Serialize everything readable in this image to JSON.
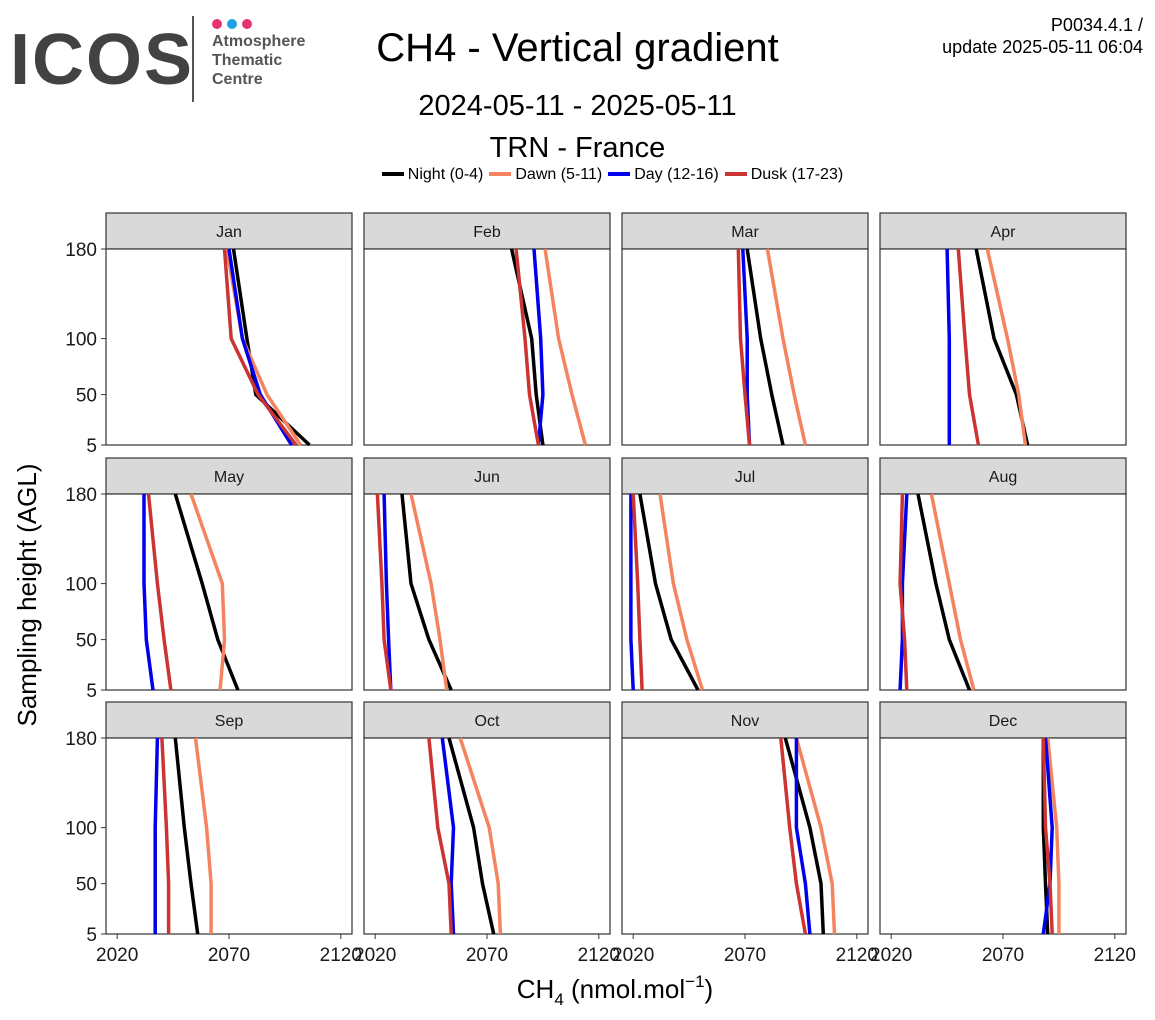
{
  "logo": {
    "word": "ICOS",
    "line1": "Atmosphere",
    "line2": "Thematic",
    "line3": "Centre",
    "dot_colors": [
      "#e8326e",
      "#1fa3e6",
      "#e8326e"
    ]
  },
  "header": {
    "version": "P0034.4.1 /",
    "update": "update  2025-05-11 06:04"
  },
  "chart_data": {
    "type": "line",
    "title": "CH4 - Vertical gradient",
    "subtitle": "2024-05-11 - 2025-05-11",
    "station": "TRN - France",
    "xlabel_main": "CH",
    "xlabel_sub": "4",
    "xlabel_unit": " (nmol.mol",
    "xlabel_sup": "−1",
    "xlabel_close": ")",
    "ylabel": "Sampling height (AGL)",
    "xlim": [
      2015,
      2125
    ],
    "xticks": [
      2020,
      2070,
      2120
    ],
    "yticks": [
      5,
      50,
      100,
      180
    ],
    "ylim": [
      5,
      180
    ],
    "heights": [
      5,
      50,
      100,
      180
    ],
    "grid": false,
    "legend_position": "top",
    "series": [
      {
        "name": "Night (0-4)",
        "color": "#000000"
      },
      {
        "name": "Dawn (5-11)",
        "color": "#f4845f"
      },
      {
        "name": "Day (12-16)",
        "color": "#0000ee"
      },
      {
        "name": "Dusk (17-23)",
        "color": "#cc3333"
      }
    ],
    "panels": [
      {
        "month": "Jan",
        "values": {
          "Night (0-4)": [
            2106,
            2082,
            2078,
            2072
          ],
          "Dawn (5-11)": [
            2102,
            2087,
            2076,
            2069
          ],
          "Day (12-16)": [
            2098,
            2084,
            2076,
            2070
          ],
          "Dusk (17-23)": [
            2100,
            2083,
            2071,
            2068
          ]
        }
      },
      {
        "month": "Feb",
        "values": {
          "Night (0-4)": [
            2095,
            2092,
            2090,
            2081
          ],
          "Dawn (5-11)": [
            2114,
            2108,
            2102,
            2096
          ],
          "Day (12-16)": [
            2093,
            2095,
            2094,
            2091
          ],
          "Dusk (17-23)": [
            2093,
            2089,
            2087,
            2083
          ]
        }
      },
      {
        "month": "Mar",
        "values": {
          "Night (0-4)": [
            2087,
            2082,
            2077,
            2071
          ],
          "Dawn (5-11)": [
            2097,
            2092,
            2087,
            2080
          ],
          "Day (12-16)": [
            2072,
            2071,
            2071,
            2069
          ],
          "Dusk (17-23)": [
            2072,
            2070,
            2068,
            2067
          ]
        }
      },
      {
        "month": "Apr",
        "values": {
          "Night (0-4)": [
            2081,
            2076,
            2066,
            2058
          ],
          "Dawn (5-11)": [
            2080,
            2077,
            2072,
            2063
          ],
          "Day (12-16)": [
            2046,
            2046,
            2046,
            2045
          ],
          "Dusk (17-23)": [
            2059,
            2055,
            2053,
            2050
          ]
        }
      },
      {
        "month": "May",
        "values": {
          "Night (0-4)": [
            2074,
            2065,
            2058,
            2046
          ],
          "Dawn (5-11)": [
            2066,
            2068,
            2067,
            2053
          ],
          "Day (12-16)": [
            2036,
            2033,
            2032,
            2032
          ],
          "Dusk (17-23)": [
            2044,
            2041,
            2038,
            2034
          ]
        }
      },
      {
        "month": "Jun",
        "values": {
          "Night (0-4)": [
            2054,
            2044,
            2036,
            2032
          ],
          "Dawn (5-11)": [
            2052,
            2049,
            2045,
            2036
          ],
          "Day (12-16)": [
            2027,
            2026,
            2025,
            2024
          ],
          "Dusk (17-23)": [
            2027,
            2024,
            2023,
            2021
          ]
        }
      },
      {
        "month": "Jul",
        "values": {
          "Night (0-4)": [
            2049,
            2037,
            2030,
            2023
          ],
          "Dawn (5-11)": [
            2051,
            2044,
            2038,
            2032
          ],
          "Day (12-16)": [
            2020,
            2019,
            2019,
            2019
          ],
          "Dusk (17-23)": [
            2024,
            2023,
            2022,
            2020
          ]
        }
      },
      {
        "month": "Aug",
        "values": {
          "Night (0-4)": [
            2055,
            2046,
            2040,
            2032
          ],
          "Dawn (5-11)": [
            2057,
            2051,
            2046,
            2038
          ],
          "Day (12-16)": [
            2024,
            2025,
            2025,
            2027
          ],
          "Dusk (17-23)": [
            2027,
            2026,
            2024,
            2025
          ]
        }
      },
      {
        "month": "Sep",
        "values": {
          "Night (0-4)": [
            2056,
            2053,
            2050,
            2046
          ],
          "Dawn (5-11)": [
            2062,
            2062,
            2060,
            2055
          ],
          "Day (12-16)": [
            2037,
            2037,
            2037,
            2038
          ],
          "Dusk (17-23)": [
            2043,
            2043,
            2042,
            2040
          ]
        }
      },
      {
        "month": "Oct",
        "values": {
          "Night (0-4)": [
            2073,
            2068,
            2064,
            2053
          ],
          "Dawn (5-11)": [
            2076,
            2075,
            2071,
            2058
          ],
          "Day (12-16)": [
            2055,
            2054,
            2055,
            2050
          ],
          "Dusk (17-23)": [
            2054,
            2053,
            2048,
            2044
          ]
        }
      },
      {
        "month": "Nov",
        "values": {
          "Night (0-4)": [
            2105,
            2104,
            2099,
            2088
          ],
          "Dawn (5-11)": [
            2110,
            2109,
            2104,
            2093
          ],
          "Day (12-16)": [
            2099,
            2097,
            2093,
            2093
          ],
          "Dusk (17-23)": [
            2097,
            2093,
            2090,
            2086
          ]
        }
      },
      {
        "month": "Dec",
        "values": {
          "Night (0-4)": [
            2090,
            2089,
            2088,
            2088
          ],
          "Dawn (5-11)": [
            2095,
            2095,
            2094,
            2090
          ],
          "Day (12-16)": [
            2088,
            2091,
            2092,
            2089
          ],
          "Dusk (17-23)": [
            2092,
            2091,
            2089,
            2088
          ]
        }
      }
    ]
  }
}
